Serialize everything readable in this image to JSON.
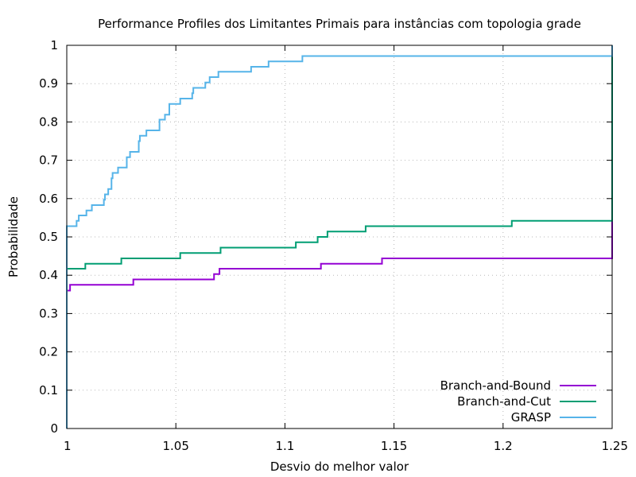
{
  "chart_data": {
    "type": "line",
    "title": "Performance Profiles dos Limitantes Primais para instâncias com topologia grade",
    "xlabel": "Desvio do melhor valor",
    "ylabel": "Probabilidade",
    "xlim": [
      1,
      1.25
    ],
    "ylim": [
      0,
      1
    ],
    "xticks": [
      1,
      1.05,
      1.1,
      1.15,
      1.2,
      1.25
    ],
    "xtick_labels": [
      "1",
      "1.05",
      "1.1",
      "1.15",
      "1.2",
      "1.25"
    ],
    "yticks": [
      0,
      0.1,
      0.2,
      0.3,
      0.4,
      0.5,
      0.6,
      0.7,
      0.8,
      0.9,
      1
    ],
    "ytick_labels": [
      "0",
      "0.1",
      "0.2",
      "0.3",
      "0.4",
      "0.5",
      "0.6",
      "0.7",
      "0.8",
      "0.9",
      "1"
    ],
    "grid": true,
    "legend_position": "bottom-right",
    "step": true,
    "series": [
      {
        "name": "Branch-and-Bound",
        "color": "#9400d3",
        "points": [
          [
            1.0,
            0.0
          ],
          [
            1.0,
            0.36
          ],
          [
            1.0015,
            0.375
          ],
          [
            1.0305,
            0.389
          ],
          [
            1.0675,
            0.403
          ],
          [
            1.07,
            0.417
          ],
          [
            1.1165,
            0.43
          ],
          [
            1.1445,
            0.444
          ],
          [
            1.25,
            0.444
          ],
          [
            1.25,
            1.0
          ]
        ]
      },
      {
        "name": "Branch-and-Cut",
        "color": "#009e73",
        "points": [
          [
            1.0,
            0.0
          ],
          [
            1.0,
            0.417
          ],
          [
            1.0085,
            0.43
          ],
          [
            1.025,
            0.444
          ],
          [
            1.052,
            0.458
          ],
          [
            1.0705,
            0.472
          ],
          [
            1.105,
            0.486
          ],
          [
            1.115,
            0.5
          ],
          [
            1.1195,
            0.514
          ],
          [
            1.137,
            0.528
          ],
          [
            1.204,
            0.542
          ],
          [
            1.25,
            0.542
          ],
          [
            1.25,
            1.0
          ]
        ]
      },
      {
        "name": "GRASP",
        "color": "#56b4e9",
        "points": [
          [
            1.0,
            0.0
          ],
          [
            1.0,
            0.528
          ],
          [
            1.0045,
            0.542
          ],
          [
            1.0055,
            0.556
          ],
          [
            1.009,
            0.569
          ],
          [
            1.0115,
            0.583
          ],
          [
            1.017,
            0.597
          ],
          [
            1.0175,
            0.611
          ],
          [
            1.019,
            0.625
          ],
          [
            1.0205,
            0.653
          ],
          [
            1.021,
            0.667
          ],
          [
            1.0235,
            0.681
          ],
          [
            1.0275,
            0.708
          ],
          [
            1.029,
            0.722
          ],
          [
            1.033,
            0.75
          ],
          [
            1.0335,
            0.764
          ],
          [
            1.0365,
            0.778
          ],
          [
            1.0425,
            0.806
          ],
          [
            1.045,
            0.819
          ],
          [
            1.047,
            0.847
          ],
          [
            1.052,
            0.861
          ],
          [
            1.0575,
            0.875
          ],
          [
            1.058,
            0.889
          ],
          [
            1.0635,
            0.903
          ],
          [
            1.0655,
            0.917
          ],
          [
            1.0695,
            0.931
          ],
          [
            1.0845,
            0.944
          ],
          [
            1.0925,
            0.958
          ],
          [
            1.108,
            0.972
          ],
          [
            1.25,
            0.972
          ],
          [
            1.25,
            1.0
          ]
        ]
      }
    ]
  }
}
